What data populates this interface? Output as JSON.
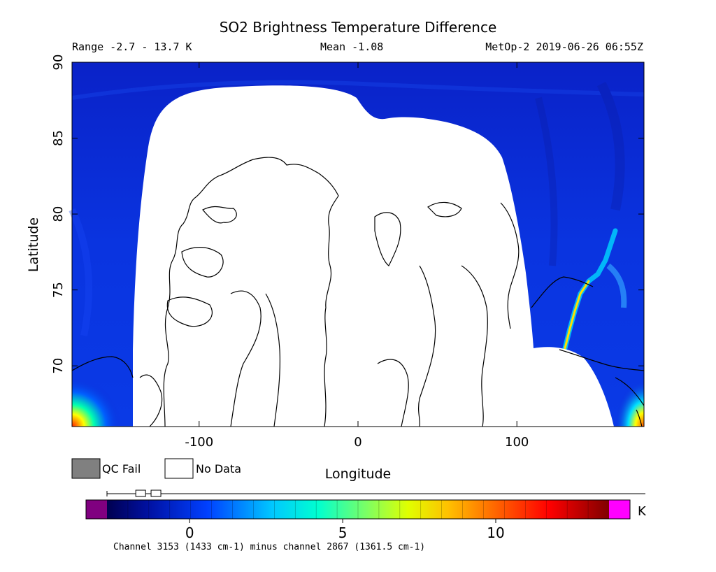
{
  "chart_data": {
    "type": "heatmap",
    "title": "SO2 Brightness Temperature Difference",
    "range_label": "Range -2.7 - 13.7 K",
    "mean_label": "Mean -1.08",
    "source_label": "MetOp-2 2019-06-26 06:55Z",
    "xlabel": "Longitude",
    "ylabel": "Latitude",
    "xlim": [
      -180,
      180
    ],
    "ylim": [
      66,
      90
    ],
    "x_ticks": [
      -100,
      0,
      100
    ],
    "y_ticks": [
      70,
      75,
      80,
      85,
      90
    ],
    "grid": false,
    "legend_boxes": [
      {
        "label": "QC Fail",
        "color": "#808080"
      },
      {
        "label": "No Data",
        "color": "#ffffff"
      }
    ],
    "colorbar": {
      "unit": "K",
      "ticks": [
        0,
        5,
        10
      ],
      "range": [
        -2.7,
        13.7
      ],
      "under_color": "#800080",
      "over_color": "#ff00ff",
      "slider_range": [
        -1.6,
        -1.1
      ],
      "caption": "Channel 3153 (1433 cm-1) minus channel 2867 (1361.5 cm-1)"
    },
    "background_value_K": -1.08,
    "features": [
      {
        "label": "Elevated SO2 arc near 75N, 140E",
        "peak_K": 6
      },
      {
        "label": "High values at map corner 67N, 180W",
        "peak_K": 10
      },
      {
        "label": "High values at map corner 67N, 180E",
        "peak_K": 8
      }
    ],
    "colors": {
      "field": "#0a2ed8",
      "no_data": "#ffffff",
      "coastline": "#000000"
    }
  }
}
